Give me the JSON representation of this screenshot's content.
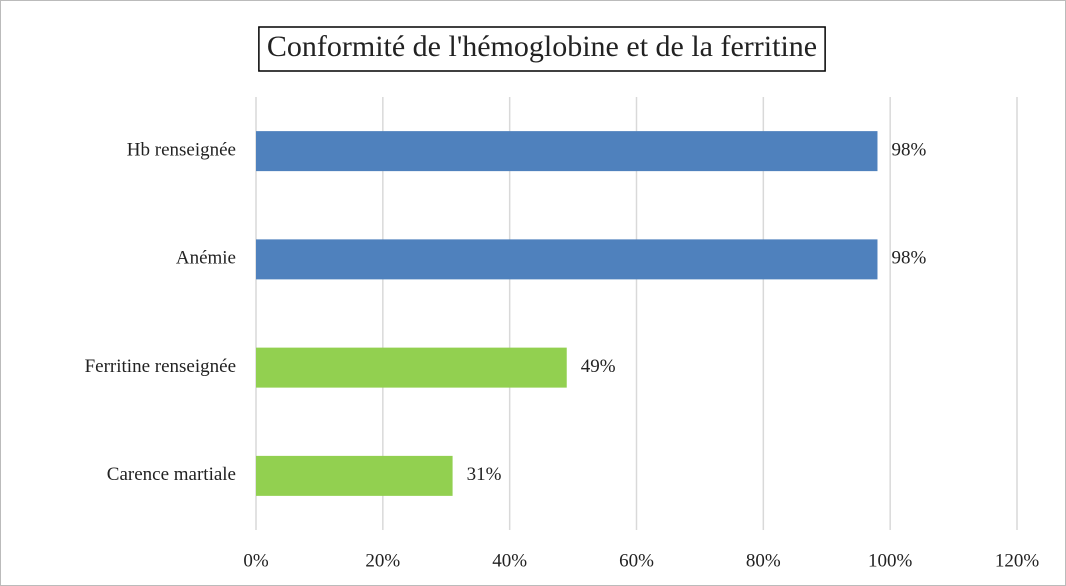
{
  "chart_data": {
    "type": "hbar",
    "title": "Conformité de l'hémoglobine et de la ferritine",
    "categories": [
      "Hb renseignée",
      "Anémie",
      "Ferritine renseignée",
      "Carence martiale"
    ],
    "values": [
      98,
      98,
      49,
      31
    ],
    "value_labels": [
      "98%",
      "98%",
      "49%",
      "31%"
    ],
    "colors": [
      "#4f81bd",
      "#4f81bd",
      "#92d050",
      "#92d050"
    ],
    "xlim": [
      0,
      120
    ],
    "xticks": [
      {
        "value": 0,
        "label": "0%"
      },
      {
        "value": 20,
        "label": "20%"
      },
      {
        "value": 40,
        "label": "40%"
      },
      {
        "value": 60,
        "label": "60%"
      },
      {
        "value": 80,
        "label": "80%"
      },
      {
        "value": 100,
        "label": "100%"
      },
      {
        "value": 120,
        "label": "120%"
      }
    ],
    "grid": true
  }
}
